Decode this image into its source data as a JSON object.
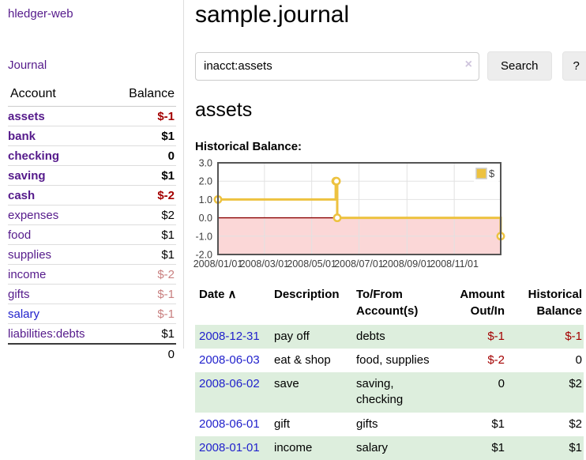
{
  "colors": {
    "accent_purple": "#551a8b",
    "link_blue": "#2222cc",
    "negative_strong": "#a40000",
    "negative_muted": "#c98080",
    "row_green": "#ddeedd",
    "chart_line": "#edc240",
    "chart_negative_fill": "#fbd7d7",
    "chart_zero_line": "#8b0000",
    "chart_grid": "#e2e2e2",
    "chart_border": "#545454"
  },
  "sidebar": {
    "app_title": "hledger-web",
    "nav": [
      {
        "label": "Journal"
      }
    ],
    "accounts_table": {
      "headers": [
        "Account",
        "Balance"
      ],
      "rows": [
        {
          "account": "assets",
          "balance": "$-1",
          "level": 0,
          "strong": true,
          "amount_class": "neg"
        },
        {
          "account": "bank",
          "balance": "$1",
          "level": 1,
          "strong": true,
          "amount_class": ""
        },
        {
          "account": "checking",
          "balance": "0",
          "level": 2,
          "strong": true,
          "amount_class": ""
        },
        {
          "account": "saving",
          "balance": "$1",
          "level": 2,
          "strong": true,
          "amount_class": ""
        },
        {
          "account": "cash",
          "balance": "$-2",
          "level": 1,
          "strong": true,
          "amount_class": "neg"
        },
        {
          "account": "expenses",
          "balance": "$2",
          "level": 0,
          "strong": false,
          "amount_class": ""
        },
        {
          "account": "food",
          "balance": "$1",
          "level": 1,
          "strong": false,
          "amount_class": ""
        },
        {
          "account": "supplies",
          "balance": "$1",
          "level": 1,
          "strong": false,
          "amount_class": ""
        },
        {
          "account": "income",
          "balance": "$-2",
          "level": 0,
          "strong": false,
          "amount_class": "neg-muted"
        },
        {
          "account": "gifts",
          "balance": "$-1",
          "level": 1,
          "strong": false,
          "amount_class": "neg-muted"
        },
        {
          "account": "salary",
          "balance": "$-1",
          "level": 1,
          "strong": false,
          "amount_class": "neg-muted",
          "link_blue": true
        },
        {
          "account": "liabilities:debts",
          "balance": "$1",
          "level": 0,
          "strong": false,
          "amount_class": ""
        }
      ],
      "total": "0"
    }
  },
  "header": {
    "title": "sample.journal"
  },
  "search": {
    "value": "inacct:assets",
    "clear_icon": "×",
    "button_label": "Search",
    "help_label": "?"
  },
  "account_page": {
    "heading": "assets",
    "chart_label": "Historical Balance:"
  },
  "chart_data": {
    "type": "line",
    "style": "step",
    "title": "Historical Balance:",
    "x_total_days": 365,
    "ylim": [
      -2,
      3
    ],
    "grid": true,
    "legend": {
      "label": "$",
      "position": "top-right"
    },
    "y_ticks": [
      {
        "label": "3.0",
        "value": 3
      },
      {
        "label": "2.0",
        "value": 2
      },
      {
        "label": "1.0",
        "value": 1
      },
      {
        "label": "0.0",
        "value": 0
      },
      {
        "label": "-1.0",
        "value": -1
      },
      {
        "label": "-2.0",
        "value": -2
      }
    ],
    "x_ticks": [
      {
        "label": "2008/01/01",
        "day": 0
      },
      {
        "label": "2008/03/01",
        "day": 60
      },
      {
        "label": "2008/05/01",
        "day": 121
      },
      {
        "label": "2008/07/01",
        "day": 182
      },
      {
        "label": "2008/09/01",
        "day": 244
      },
      {
        "label": "2008/11/01",
        "day": 305
      }
    ],
    "series": [
      {
        "name": "$",
        "points": [
          {
            "date": "2008-01-01",
            "day": 0,
            "value": 1
          },
          {
            "date": "2008-06-01",
            "day": 152,
            "value": 2
          },
          {
            "date": "2008-06-02",
            "day": 153,
            "value": 2
          },
          {
            "date": "2008-06-03",
            "day": 154,
            "value": 0
          },
          {
            "date": "2008-12-31",
            "day": 365,
            "value": -1
          }
        ]
      }
    ]
  },
  "register_table": {
    "sort_icon": "∧",
    "columns": [
      {
        "label": "Date",
        "sortable": true
      },
      {
        "label": "Description"
      },
      {
        "label": "To/From Account(s)"
      },
      {
        "label": "Amount Out/In",
        "align": "right"
      },
      {
        "label": "Historical Balance",
        "align": "right"
      }
    ],
    "rows": [
      {
        "date": "2008-12-31",
        "description": "pay off",
        "accounts": "debts",
        "amount": "$-1",
        "amount_negative": true,
        "balance": "$-1",
        "balance_negative": true
      },
      {
        "date": "2008-06-03",
        "description": "eat & shop",
        "accounts": "food, supplies",
        "amount": "$-2",
        "amount_negative": true,
        "balance": "0",
        "balance_negative": false
      },
      {
        "date": "2008-06-02",
        "description": "save",
        "accounts": "saving, checking",
        "amount": "0",
        "amount_negative": false,
        "balance": "$2",
        "balance_negative": false
      },
      {
        "date": "2008-06-01",
        "description": "gift",
        "accounts": "gifts",
        "amount": "$1",
        "amount_negative": false,
        "balance": "$2",
        "balance_negative": false
      },
      {
        "date": "2008-01-01",
        "description": "income",
        "accounts": "salary",
        "amount": "$1",
        "amount_negative": false,
        "balance": "$1",
        "balance_negative": false
      }
    ]
  }
}
